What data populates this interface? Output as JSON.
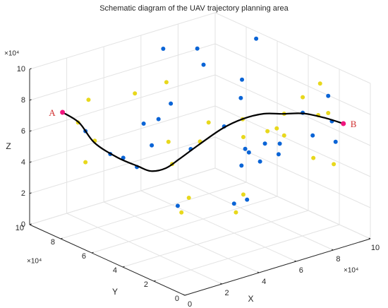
{
  "chart_data": {
    "type": "scatter3d",
    "title": "Schematic diagram of the  UAV trajectory planning area",
    "xlabel": "X",
    "ylabel": "Y",
    "zlabel": "Z",
    "x_exponent": "×10⁴",
    "y_exponent": "×10⁴",
    "z_exponent": "×10⁴",
    "xlim": [
      0,
      10
    ],
    "ylim": [
      0,
      10
    ],
    "zlim": [
      0,
      10
    ],
    "xticks": [
      0,
      2,
      4,
      6,
      8,
      10
    ],
    "yticks": [
      0,
      2,
      4,
      6,
      8,
      10
    ],
    "zticks": [
      0,
      2,
      4,
      6,
      8,
      10
    ],
    "grid": true,
    "series": [
      {
        "color": "#0a64d6",
        "x": [
          7.2,
          9.7,
          8.2,
          7.7,
          8.1,
          7.2,
          5.1,
          3.6,
          2.8,
          0.5,
          1.0,
          1.7,
          1.6,
          2.4,
          4.5,
          6.3,
          6.6,
          6.8,
          6.4,
          7.4,
          8.5,
          8.4,
          9.3,
          9.7,
          9.4,
          9.4,
          9.6,
          9.8,
          3.8,
          6.0,
          6.7
        ],
        "y": [
          10,
          7,
          9,
          8,
          6,
          5,
          7,
          6,
          6,
          7,
          6,
          6,
          5,
          5,
          5,
          5,
          4,
          4,
          4,
          4,
          5,
          4,
          5,
          4,
          3,
          2,
          2,
          2,
          5,
          4,
          4
        ],
        "z": [
          8.7,
          9.8,
          8.8,
          8.4,
          8.2,
          7.8,
          7.3,
          7.3,
          7.3,
          7.2,
          6.0,
          5.5,
          5.4,
          6.5,
          5.5,
          6.3,
          5.2,
          4.9,
          4.2,
          4.1,
          4.4,
          4.2,
          4.1,
          6.4,
          5.5,
          8.5,
          6.8,
          5.4,
          2.1,
          1.9,
          1.9
        ]
      },
      {
        "color": "#e8d81c",
        "x": [
          1.5,
          4.0,
          5.7,
          0.1,
          1.0,
          0.5,
          3.3,
          3.5,
          6.3,
          5.0,
          7.3,
          6.5,
          7.8,
          8.3,
          8.7,
          8.7,
          9.7,
          9.7,
          9.8,
          9.4,
          8.6,
          9.7,
          4.4,
          4.0,
          6.5,
          6.1
        ],
        "y": [
          8,
          8,
          8,
          7,
          7,
          7,
          5,
          5,
          6,
          5,
          5,
          4,
          4,
          4,
          4,
          4,
          4,
          3,
          3,
          2,
          2,
          2,
          5,
          5,
          4,
          4
        ],
        "z": [
          8.4,
          7.9,
          8.0,
          7.9,
          6.4,
          5.2,
          6.4,
          4.9,
          6.1,
          5.8,
          6.4,
          6.0,
          5.9,
          5.9,
          6.7,
          5.3,
          7.4,
          6.7,
          8.7,
          7.4,
          4.8,
          4.0,
          2.4,
          1.6,
          2.3,
          1.3
        ]
      }
    ],
    "trajectory": {
      "color": "#000000",
      "endpoint_color": "#f0167e",
      "x": [
        0.1,
        1.0,
        1.4,
        2.2,
        2.9,
        3.2,
        4.0,
        4.3,
        4.9,
        6.2,
        6.9,
        7.6,
        8.2,
        8.9,
        9.6,
        9.8
      ],
      "y": [
        8,
        8,
        7.5,
        7,
        6.5,
        6,
        6,
        5.5,
        5,
        5,
        4.5,
        4,
        3.5,
        3,
        2.5,
        1.5
      ],
      "z": [
        8.1,
        7.1,
        5.9,
        4.9,
        4.3,
        4.1,
        4.0,
        4.7,
        5.6,
        6.2,
        6.8,
        7.1,
        7.1,
        7.1,
        6.8,
        6.8
      ]
    },
    "annotations": [
      {
        "text": "A",
        "color": "#d03030"
      },
      {
        "text": "B",
        "color": "#d03030"
      }
    ]
  }
}
